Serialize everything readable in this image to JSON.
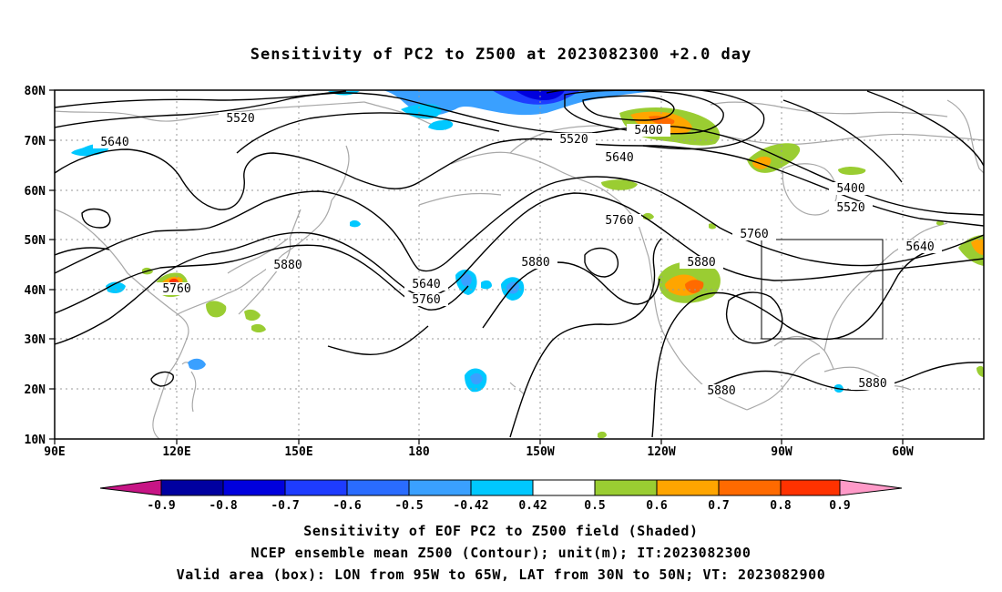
{
  "title": "Sensitivity of PC2 to Z500 at 2023082300 +2.0 day",
  "map": {
    "lon_labels": [
      "90E",
      "120E",
      "150E",
      "180",
      "150W",
      "120W",
      "90W",
      "60W"
    ],
    "lat_labels": [
      "80N",
      "70N",
      "60N",
      "50N",
      "40N",
      "30N",
      "20N",
      "10N"
    ],
    "valid_box": {
      "lon_from": "95W",
      "lon_to": "65W",
      "lat_from": "30N",
      "lat_to": "50N"
    },
    "contour_labels": [
      "5520",
      "5640",
      "5520",
      "5400",
      "5640",
      "5400",
      "5520",
      "5760",
      "5640",
      "5760",
      "5880",
      "5640",
      "5760",
      "5880",
      "5760",
      "5880",
      "5880",
      "5880"
    ]
  },
  "colorbar": {
    "tick_labels": [
      "-0.9",
      "-0.8",
      "-0.7",
      "-0.6",
      "-0.5",
      "-0.42",
      "0.42",
      "0.5",
      "0.6",
      "0.7",
      "0.8",
      "0.9"
    ],
    "colors": [
      "#c71585",
      "#0000a0",
      "#0000dd",
      "#1e3cff",
      "#2a6cff",
      "#3aa0ff",
      "#00c8ff",
      "#ffffff",
      "#9acd32",
      "#ffa500",
      "#ff6a00",
      "#ff3200",
      "#ff0000",
      "#ff9ac8"
    ]
  },
  "captions": {
    "line1": "Sensitivity of EOF PC2 to Z500 field (Shaded)",
    "line2": "NCEP ensemble mean Z500 (Contour); unit(m); IT:2023082300",
    "line3": "Valid area (box): LON from 95W to 65W, LAT from 30N to 50N; VT: 2023082900"
  }
}
